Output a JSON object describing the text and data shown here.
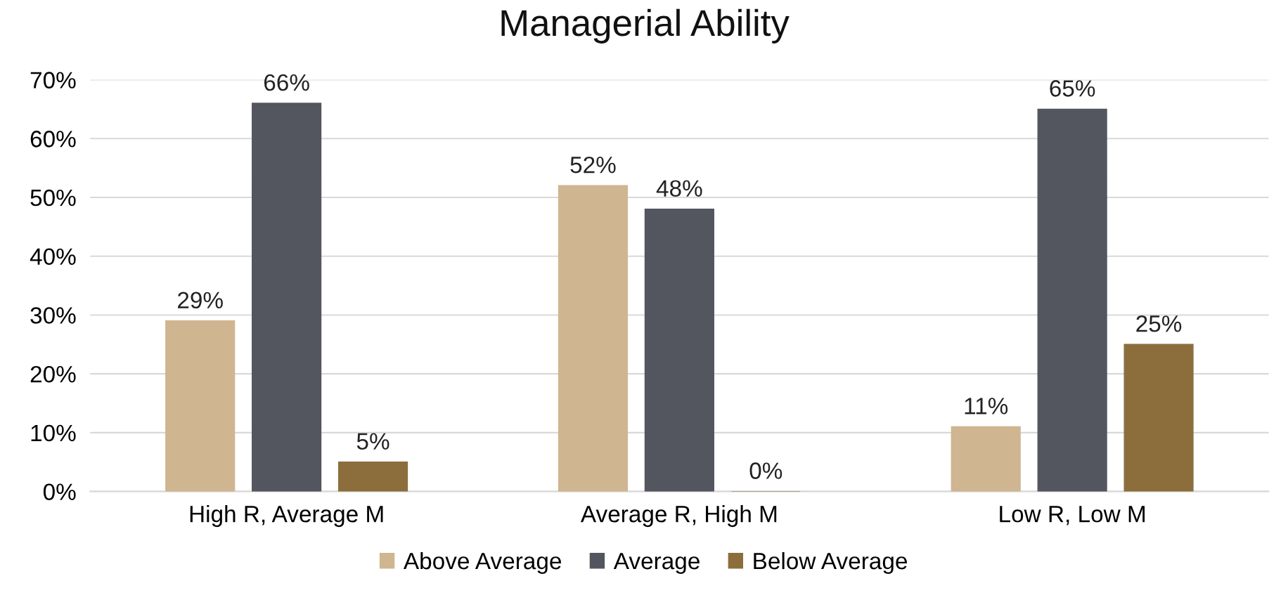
{
  "chart_data": {
    "type": "bar",
    "title": "Managerial Ability",
    "categories": [
      "High R, Average M",
      "Average R, High M",
      "Low R, Low M"
    ],
    "series": [
      {
        "name": "Above Average",
        "color": "#cfb590",
        "values": [
          29,
          52,
          11
        ],
        "value_labels": [
          "29%",
          "52%",
          "11%"
        ]
      },
      {
        "name": "Average",
        "color": "#53565e",
        "values": [
          66,
          48,
          65
        ],
        "value_labels": [
          "66%",
          "48%",
          "65%"
        ]
      },
      {
        "name": "Below Average",
        "color": "#8b6e3c",
        "values": [
          5,
          0,
          25
        ],
        "value_labels": [
          "5%",
          "0%",
          "25%"
        ]
      }
    ],
    "ylim": [
      0,
      70
    ],
    "yticks": [
      {
        "value": 0,
        "label": "0%"
      },
      {
        "value": 10,
        "label": "10%"
      },
      {
        "value": 20,
        "label": "20%"
      },
      {
        "value": 30,
        "label": "30%"
      },
      {
        "value": 40,
        "label": "40%"
      },
      {
        "value": 50,
        "label": "50%"
      },
      {
        "value": 60,
        "label": "60%"
      },
      {
        "value": 70,
        "label": "70%"
      }
    ],
    "grid": "y",
    "legend": "bottom"
  }
}
